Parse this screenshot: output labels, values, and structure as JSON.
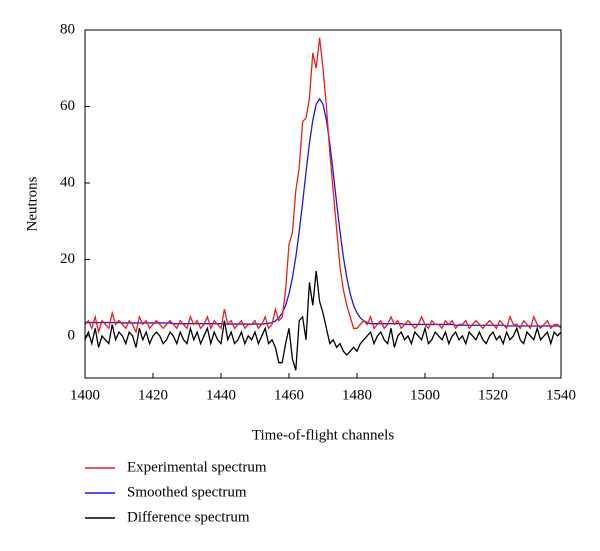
{
  "chart_data": {
    "type": "line",
    "xlabel": "Time-of-flight channels",
    "ylabel": "Neutrons",
    "x": [
      1400,
      1401,
      1402,
      1403,
      1404,
      1405,
      1406,
      1407,
      1408,
      1409,
      1410,
      1411,
      1412,
      1413,
      1414,
      1415,
      1416,
      1417,
      1418,
      1419,
      1420,
      1421,
      1422,
      1423,
      1424,
      1425,
      1426,
      1427,
      1428,
      1429,
      1430,
      1431,
      1432,
      1433,
      1434,
      1435,
      1436,
      1437,
      1438,
      1439,
      1440,
      1441,
      1442,
      1443,
      1444,
      1445,
      1446,
      1447,
      1448,
      1449,
      1450,
      1451,
      1452,
      1453,
      1454,
      1455,
      1456,
      1457,
      1458,
      1459,
      1460,
      1461,
      1462,
      1463,
      1464,
      1465,
      1466,
      1467,
      1468,
      1469,
      1470,
      1471,
      1472,
      1473,
      1474,
      1475,
      1476,
      1477,
      1478,
      1479,
      1480,
      1481,
      1482,
      1483,
      1484,
      1485,
      1486,
      1487,
      1488,
      1489,
      1490,
      1491,
      1492,
      1493,
      1494,
      1495,
      1496,
      1497,
      1498,
      1499,
      1500,
      1501,
      1502,
      1503,
      1504,
      1505,
      1506,
      1507,
      1508,
      1509,
      1510,
      1511,
      1512,
      1513,
      1514,
      1515,
      1516,
      1517,
      1518,
      1519,
      1520,
      1521,
      1522,
      1523,
      1524,
      1525,
      1526,
      1527,
      1528,
      1529,
      1530,
      1531,
      1532,
      1533,
      1534,
      1535,
      1536,
      1537,
      1538,
      1539,
      1540
    ],
    "series": [
      {
        "name": "Experimental spectrum",
        "color": "#e8201c",
        "values": [
          3,
          4,
          2,
          5,
          1,
          4,
          3,
          2,
          6,
          3,
          4,
          3,
          2,
          4,
          3,
          1,
          5,
          3,
          4,
          2,
          3,
          4,
          3,
          2,
          3,
          4,
          3,
          2,
          4,
          3,
          2,
          5,
          3,
          4,
          2,
          3,
          5,
          2,
          4,
          3,
          2,
          7,
          3,
          4,
          2,
          3,
          4,
          2,
          3,
          3,
          4,
          2,
          3,
          5,
          2,
          3,
          7,
          4,
          5,
          12,
          24,
          27,
          38,
          44,
          56,
          57,
          62,
          74,
          70,
          78,
          70,
          60,
          48,
          38,
          28,
          18,
          12,
          8,
          5,
          2,
          2,
          3,
          4,
          3,
          5,
          2,
          3,
          4,
          2,
          3,
          5,
          3,
          4,
          2,
          3,
          4,
          3,
          2,
          3,
          5,
          3,
          2,
          4,
          3,
          3,
          2,
          4,
          3,
          4,
          2,
          3,
          3,
          4,
          2,
          3,
          4,
          3,
          2,
          3,
          4,
          3,
          2,
          4,
          3,
          2,
          5,
          3,
          3,
          2,
          4,
          3,
          2,
          5,
          3,
          2,
          3,
          4,
          2,
          3,
          3,
          2
        ]
      },
      {
        "name": "Smoothed spectrum",
        "color": "#1a1adf",
        "values": [
          3.5,
          3.5,
          3.5,
          3.5,
          3.5,
          3.5,
          3.5,
          3.5,
          3.5,
          3.5,
          3.5,
          3.4,
          3.4,
          3.4,
          3.4,
          3.4,
          3.4,
          3.4,
          3.4,
          3.4,
          3.4,
          3.4,
          3.4,
          3.4,
          3.4,
          3.4,
          3.2,
          3.2,
          3.2,
          3.2,
          3.2,
          3.2,
          3.2,
          3.2,
          3.2,
          3.2,
          3.2,
          3.2,
          3.2,
          3.2,
          3.2,
          3.1,
          3.1,
          3.1,
          3.1,
          3.1,
          3.1,
          3.1,
          3.1,
          3.1,
          3.1,
          3.1,
          3.1,
          3.2,
          3.3,
          3.5,
          3.9,
          4.7,
          6,
          8,
          11,
          15.2,
          20.6,
          27.3,
          34.8,
          42.8,
          50.3,
          56.4,
          60.6,
          62,
          60.6,
          56.4,
          50.3,
          42.8,
          34.8,
          27.3,
          20.6,
          15.2,
          11,
          8,
          6,
          4.7,
          3.9,
          3.5,
          3.2,
          3.2,
          3.2,
          3.2,
          3.2,
          3.2,
          3.2,
          3.2,
          3.2,
          3.2,
          3,
          3,
          3,
          3,
          3,
          3,
          3,
          3,
          3,
          3,
          3,
          3,
          3,
          3,
          3,
          2.8,
          2.8,
          2.8,
          2.8,
          2.8,
          2.8,
          2.8,
          2.8,
          2.8,
          2.8,
          2.8,
          2.8,
          2.8,
          2.8,
          2.8,
          2.6,
          2.6,
          2.6,
          2.6,
          2.6,
          2.6,
          2.6,
          2.6,
          2.6,
          2.6,
          2.6,
          2.6,
          2.6,
          2.6,
          2.6,
          2.6,
          2.6
        ]
      },
      {
        "name": "Difference spectrum",
        "color": "#000000",
        "values": [
          -1,
          1,
          -2,
          2,
          -3,
          0,
          -1,
          -2,
          3,
          -1,
          1,
          0,
          -2,
          1,
          0,
          -3,
          2,
          -1,
          1,
          -2,
          0,
          1,
          0,
          -2,
          -1,
          1,
          0,
          -2,
          1,
          -1,
          -2,
          2,
          -1,
          1,
          -2,
          0,
          2,
          -2,
          1,
          -1,
          -2,
          4,
          -1,
          1,
          -2,
          -1,
          1,
          -2,
          0,
          -1,
          1,
          -2,
          0,
          2,
          -2,
          -1,
          -3,
          -7,
          -7,
          -2,
          2,
          -6,
          -9,
          4,
          5,
          -1,
          14,
          8,
          17,
          9,
          6,
          2,
          -2,
          -1,
          -3,
          -2,
          -4,
          -5,
          -4,
          -3,
          -4,
          -2,
          -1,
          0,
          1,
          -2,
          0,
          1,
          -1,
          -2,
          2,
          -3,
          0,
          1,
          -1,
          0,
          -2,
          1,
          0,
          -1,
          2,
          -2,
          -1,
          1,
          0,
          -1,
          1,
          -2,
          0,
          1,
          -1,
          0,
          -2,
          1,
          0,
          -1,
          1,
          -1,
          -2,
          0,
          1,
          -1,
          0,
          -2,
          1,
          -1,
          0,
          2,
          -1,
          -2,
          1,
          0,
          -1,
          2,
          -1,
          0,
          1,
          -2,
          1,
          0,
          1
        ]
      }
    ],
    "xlim": [
      1400,
      1540
    ],
    "xticks": [
      1400,
      1420,
      1440,
      1460,
      1480,
      1500,
      1520,
      1540
    ],
    "ylim": [
      -11,
      80
    ],
    "yticks": [
      0,
      20,
      40,
      60,
      80
    ]
  }
}
